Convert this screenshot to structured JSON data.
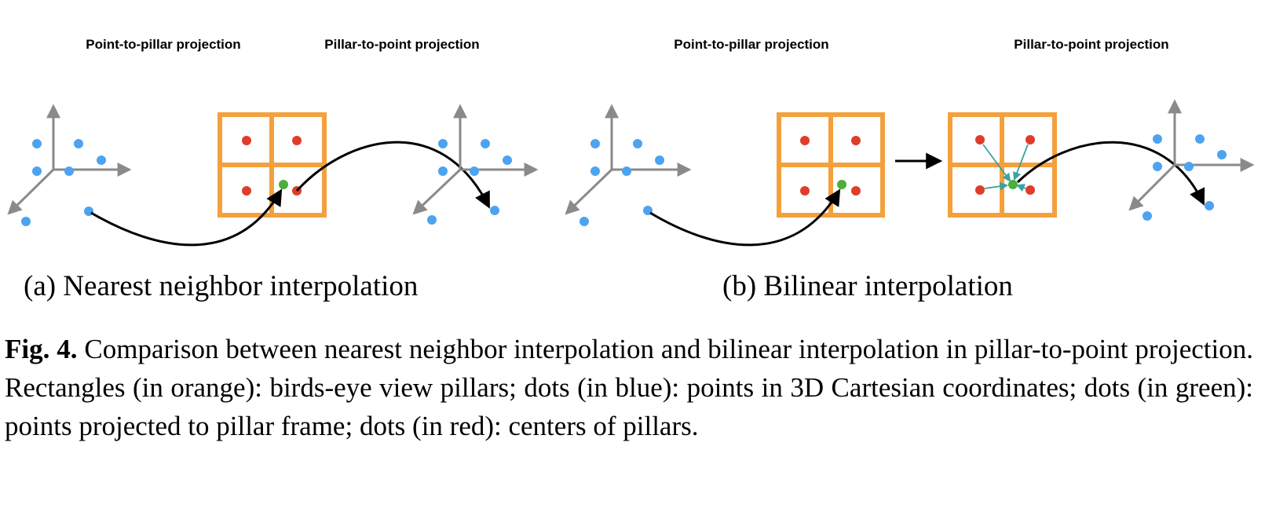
{
  "figure": {
    "panels": [
      {
        "headers": [
          "Point-to-pillar projection",
          "Pillar-to-point projection"
        ],
        "subcaption": "(a) Nearest neighbor interpolation"
      },
      {
        "headers": [
          "Point-to-pillar projection",
          "Pillar-to-point projection"
        ],
        "subcaption": "(b) Bilinear interpolation"
      }
    ],
    "caption": {
      "label": "Fig. 4.",
      "text": "Comparison between nearest neighbor interpolation and bilinear interpolation in pillar-to-point projection. Rectangles (in orange): birds-eye view pillars; dots (in blue): points in 3D Cartesian coordinates; dots (in green): points projected to pillar frame; dots (in red): centers of pillars."
    },
    "colors": {
      "pillar": "#f4a03c",
      "point": "#4da3f0",
      "projected": "#4caf3c",
      "center": "#e03c2c",
      "axis": "#8a8a8a",
      "weight_arrow": "#3aa3a0"
    }
  }
}
